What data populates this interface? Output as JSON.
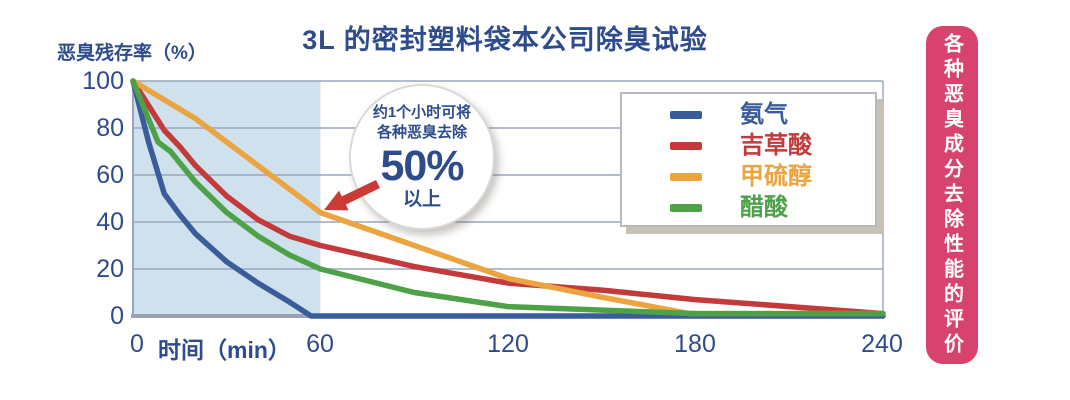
{
  "title": "3L 的密封塑料袋本公司除臭试验",
  "axis": {
    "y_label": "恶臭残存率（%）",
    "x_unit_label": "时间（min）",
    "y_ticks": [
      "100",
      "80",
      "60",
      "40",
      "20",
      "0"
    ],
    "x_ticks": [
      "0",
      "60",
      "120",
      "180",
      "240"
    ]
  },
  "callout": {
    "line1": "约1个小时可将",
    "line2": "各种恶臭去除",
    "big": "50%",
    "line3": "以上"
  },
  "banner": {
    "text": "各种恶臭成分去除性能的评价",
    "color": "#d8436e"
  },
  "colors": {
    "text_blue": "#2e4c8c",
    "grid": "#9ba6bf",
    "axis": "#97a2b5",
    "arrow_red": "#cb3a34",
    "highlight_fill": "#cfe1ed"
  },
  "chart_data": {
    "type": "line",
    "title": "3L 的密封塑料袋本公司除臭试验",
    "xlabel": "时间（min）",
    "ylabel": "恶臭残存率（%）",
    "xlim": [
      0,
      240
    ],
    "ylim": [
      0,
      100
    ],
    "x_ticks": [
      0,
      60,
      120,
      180,
      240
    ],
    "y_ticks": [
      0,
      20,
      40,
      60,
      80,
      100
    ],
    "grid": "horizontal",
    "legend_position": "upper right",
    "highlight_region": {
      "x_from": 0,
      "x_to": 60,
      "color": "#cfe1ed"
    },
    "annotation": "约1个小时可将各种恶臭去除50%以上",
    "series": [
      {
        "name": "氨气",
        "color": "#3a5c9b",
        "points": [
          [
            0,
            100
          ],
          [
            5,
            74
          ],
          [
            10,
            52
          ],
          [
            15,
            43
          ],
          [
            20,
            35
          ],
          [
            30,
            23
          ],
          [
            40,
            14
          ],
          [
            50,
            6
          ],
          [
            57,
            0
          ],
          [
            240,
            0
          ]
        ]
      },
      {
        "name": "吉草酸",
        "color": "#c43a3a",
        "points": [
          [
            0,
            100
          ],
          [
            10,
            79
          ],
          [
            15,
            72
          ],
          [
            20,
            64
          ],
          [
            30,
            51
          ],
          [
            40,
            41
          ],
          [
            50,
            34
          ],
          [
            60,
            30
          ],
          [
            90,
            21
          ],
          [
            120,
            14
          ],
          [
            150,
            11
          ],
          [
            180,
            7
          ],
          [
            240,
            1
          ]
        ]
      },
      {
        "name": "甲硫醇",
        "color": "#eba440",
        "points": [
          [
            0,
            100
          ],
          [
            10,
            92
          ],
          [
            20,
            84
          ],
          [
            30,
            74
          ],
          [
            40,
            64
          ],
          [
            50,
            54
          ],
          [
            60,
            44
          ],
          [
            90,
            30
          ],
          [
            120,
            16
          ],
          [
            150,
            8
          ],
          [
            178,
            1
          ],
          [
            240,
            1
          ]
        ]
      },
      {
        "name": "醋酸",
        "color": "#4da147",
        "points": [
          [
            0,
            100
          ],
          [
            8,
            74
          ],
          [
            12,
            70
          ],
          [
            20,
            57
          ],
          [
            30,
            44
          ],
          [
            40,
            34
          ],
          [
            50,
            26
          ],
          [
            60,
            20
          ],
          [
            90,
            10
          ],
          [
            120,
            4
          ],
          [
            180,
            1
          ],
          [
            240,
            1
          ]
        ]
      }
    ]
  }
}
